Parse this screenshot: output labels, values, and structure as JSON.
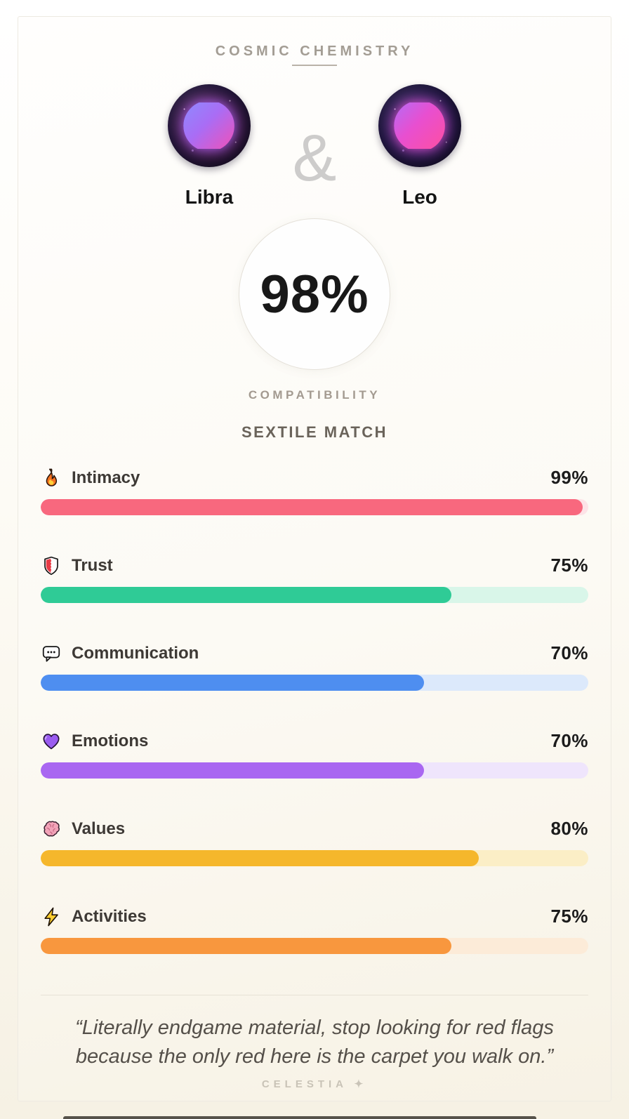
{
  "header": {
    "title": "COSMIC CHEMISTRY"
  },
  "pair": {
    "separator": "&",
    "left": {
      "name": "Libra",
      "symbol": "♎",
      "icon": "libra-zodiac-icon"
    },
    "right": {
      "name": "Leo",
      "symbol": "♌",
      "icon": "leo-zodiac-icon"
    }
  },
  "score": {
    "value": "98%",
    "caption": "COMPATIBILITY",
    "match_type": "SEXTILE MATCH"
  },
  "stats": [
    {
      "label": "Intimacy",
      "value": "99%",
      "percent": 99,
      "icon": "fire-icon",
      "fill_color": "#f8687e",
      "track_color": "#fde3e7"
    },
    {
      "label": "Trust",
      "value": "75%",
      "percent": 75,
      "icon": "shield-icon",
      "fill_color": "#2fcb96",
      "track_color": "#d9f6e9"
    },
    {
      "label": "Communication",
      "value": "70%",
      "percent": 70,
      "icon": "speech-bubble-icon",
      "fill_color": "#4e8ef0",
      "track_color": "#dce9fb"
    },
    {
      "label": "Emotions",
      "value": "70%",
      "percent": 70,
      "icon": "purple-heart-icon",
      "fill_color": "#a967f1",
      "track_color": "#efe5fc"
    },
    {
      "label": "Values",
      "value": "80%",
      "percent": 80,
      "icon": "brain-icon",
      "fill_color": "#f5b72c",
      "track_color": "#fbeec6"
    },
    {
      "label": "Activities",
      "value": "75%",
      "percent": 75,
      "icon": "lightning-icon",
      "fill_color": "#f8973e",
      "track_color": "#fcebd8"
    }
  ],
  "quote": "“Literally endgame material, stop looking for red flags because the only red here is the carpet you walk on.”",
  "brand": {
    "name": "CELESTIA",
    "sparkle": "✦"
  }
}
